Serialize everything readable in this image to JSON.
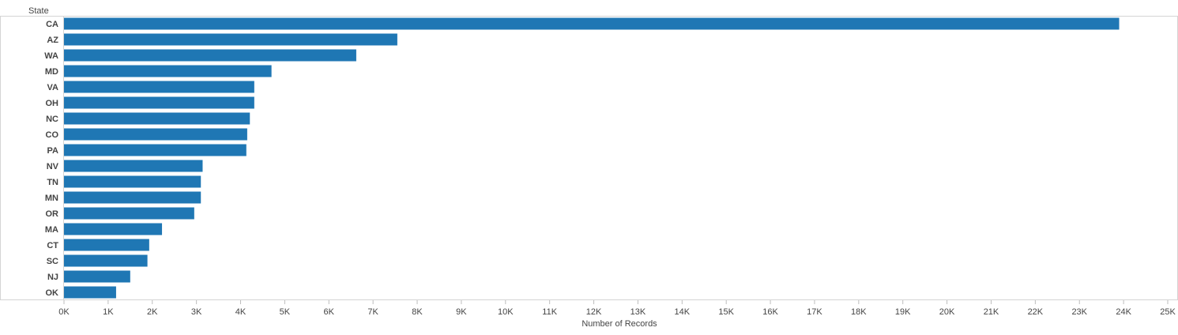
{
  "chart_data": {
    "type": "bar",
    "orientation": "horizontal",
    "row_header": "State",
    "xlabel": "Number of Records",
    "categories": [
      "CA",
      "AZ",
      "WA",
      "MD",
      "VA",
      "OH",
      "NC",
      "CO",
      "PA",
      "NV",
      "TN",
      "MN",
      "OR",
      "MA",
      "CT",
      "SC",
      "NJ",
      "OK"
    ],
    "values": [
      23900,
      7550,
      6620,
      4700,
      4310,
      4310,
      4210,
      4150,
      4130,
      3140,
      3100,
      3100,
      2950,
      2220,
      1930,
      1890,
      1500,
      1180
    ],
    "xlim": [
      0,
      25000
    ],
    "ticks": [
      "0K",
      "1K",
      "2K",
      "3K",
      "4K",
      "5K",
      "6K",
      "7K",
      "8K",
      "9K",
      "10K",
      "11K",
      "12K",
      "13K",
      "14K",
      "15K",
      "16K",
      "17K",
      "18K",
      "19K",
      "20K",
      "21K",
      "22K",
      "23K",
      "24K",
      "25K"
    ],
    "bar_color": "#1f77b4",
    "grid": false,
    "legend": "none"
  }
}
